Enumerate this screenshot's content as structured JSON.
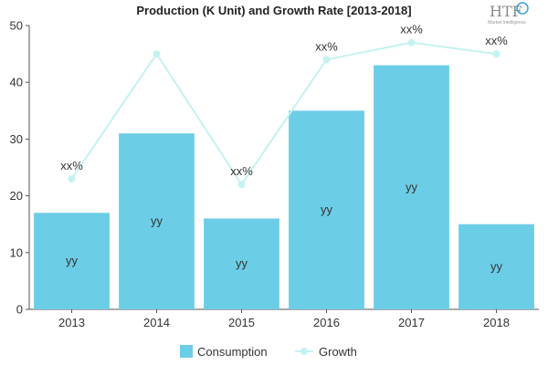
{
  "chart_data": {
    "type": "bar",
    "title": "Production (K Unit) and Growth Rate [2013-2018]",
    "categories": [
      "2013",
      "2014",
      "2015",
      "2016",
      "2017",
      "2018"
    ],
    "ylim": [
      0,
      50
    ],
    "yticks": [
      0,
      10,
      20,
      30,
      40,
      50
    ],
    "grid": false,
    "legend_position": "bottom",
    "series": [
      {
        "name": "Consumption",
        "type": "bar",
        "values": [
          17,
          31,
          16,
          35,
          43,
          15
        ],
        "labels": [
          "yy",
          "yy",
          "yy",
          "yy",
          "yy",
          "yy"
        ],
        "color": "#6ccde6"
      },
      {
        "name": "Growth",
        "type": "line",
        "values": [
          23,
          45,
          22,
          44,
          47,
          45
        ],
        "labels": [
          "xx%",
          "",
          "xx%",
          "xx%",
          "xx%",
          "xx%"
        ],
        "color": "#c4f2f0"
      }
    ]
  },
  "logo": {
    "text": "HTF",
    "subtext": "Market Intelligence",
    "accent_color": "#3aa0d8"
  }
}
